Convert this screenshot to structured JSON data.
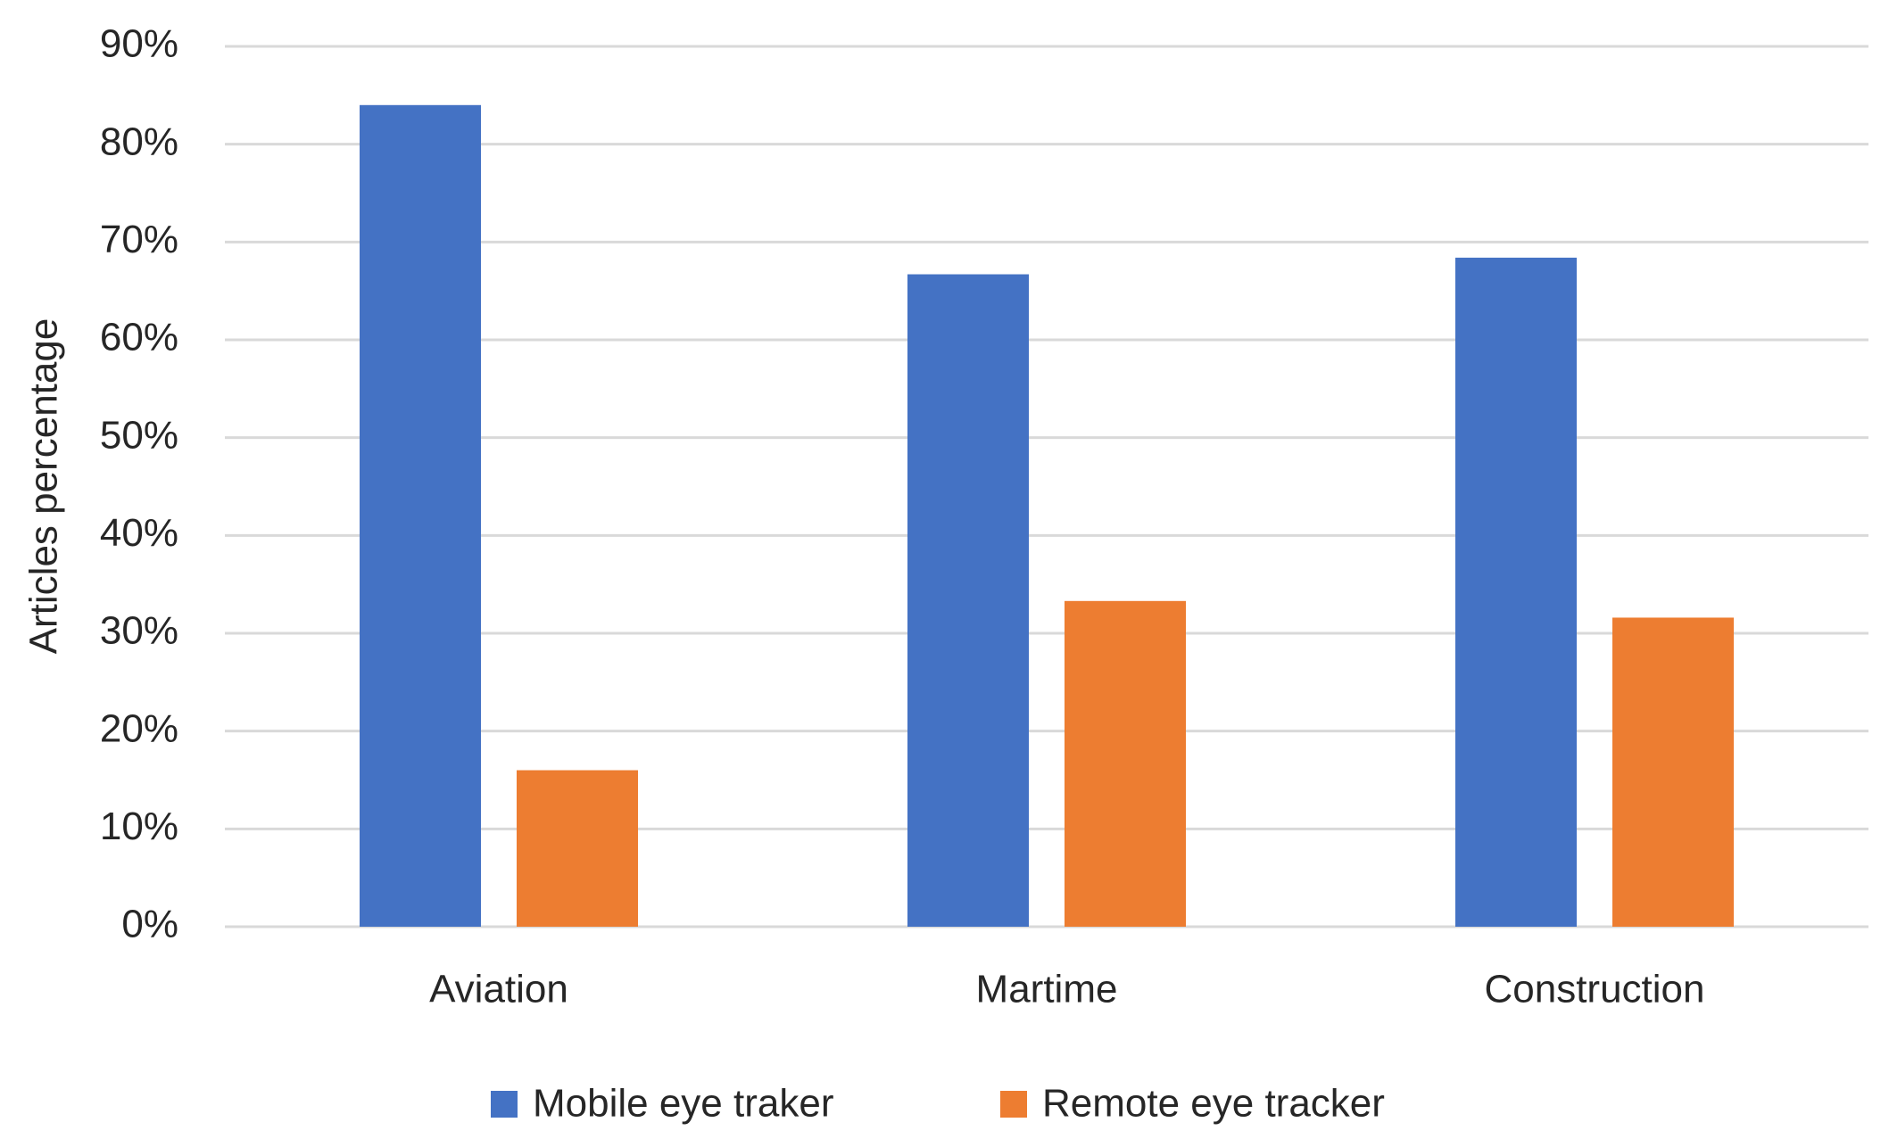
{
  "chart_data": {
    "type": "bar",
    "y_axis_label": "Articles percentage",
    "categories": [
      "Aviation",
      "Martime",
      "Construction"
    ],
    "series": [
      {
        "name": "Mobile eye traker",
        "color": "#4472c4",
        "values": [
          84,
          66.7,
          68.4
        ]
      },
      {
        "name": "Remote eye tracker",
        "color": "#ed7d31",
        "values": [
          16,
          33.3,
          31.6
        ]
      }
    ],
    "ylim": [
      0,
      90
    ],
    "yticks": [
      {
        "value": 0,
        "label": "0%"
      },
      {
        "value": 10,
        "label": "10%"
      },
      {
        "value": 20,
        "label": "20%"
      },
      {
        "value": 30,
        "label": "30%"
      },
      {
        "value": 40,
        "label": "40%"
      },
      {
        "value": 50,
        "label": "50%"
      },
      {
        "value": 60,
        "label": "60%"
      },
      {
        "value": 70,
        "label": "70%"
      },
      {
        "value": 80,
        "label": "80%"
      },
      {
        "value": 90,
        "label": "90%"
      }
    ],
    "grid": true,
    "legend": "bottom"
  }
}
